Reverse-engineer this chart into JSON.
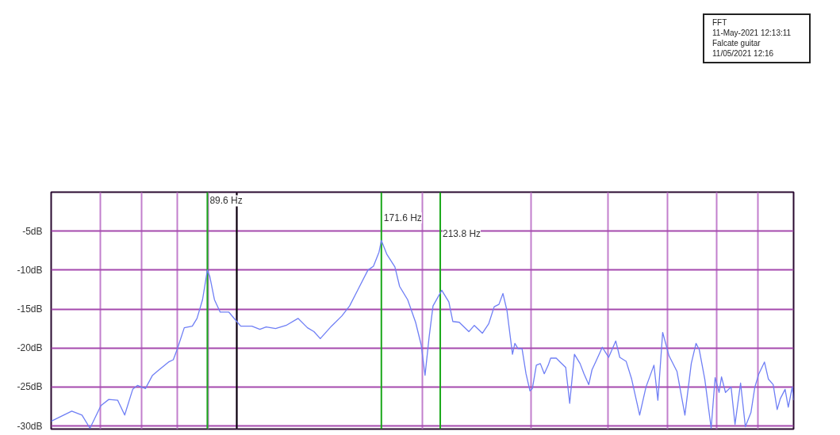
{
  "chart_data": {
    "type": "line",
    "annotations": [
      "FFT",
      "11-May-2021 12:13:11",
      "Falcate guitar",
      "11/05/2021 12:16"
    ],
    "xlim": [
      50,
      800
    ],
    "ylim": [
      -30.4,
      0
    ],
    "log": "x",
    "grid": true,
    "tick_labels": "y",
    "marker": "none",
    "line_style": "solid",
    "xticks": [
      {
        "value": 60,
        "label": null
      },
      {
        "value": 70,
        "label": null
      },
      {
        "value": 80,
        "label": null
      },
      {
        "value": 90,
        "label": null
      },
      {
        "value": 100,
        "label": null
      },
      {
        "value": 200,
        "label": null
      },
      {
        "value": 300,
        "label": null
      },
      {
        "value": 400,
        "label": null
      },
      {
        "value": 500,
        "label": null
      },
      {
        "value": 600,
        "label": null
      },
      {
        "value": 700,
        "label": null
      }
    ],
    "yticks": [
      {
        "value": -5,
        "label": "-5dB"
      },
      {
        "value": -10,
        "label": "-10dB"
      },
      {
        "value": -15,
        "label": "-15dB"
      },
      {
        "value": -20,
        "label": "-20dB"
      },
      {
        "value": -25,
        "label": "-25dB"
      },
      {
        "value": -30,
        "label": "-30dB"
      }
    ],
    "ref_lines": [
      {
        "axis": "x",
        "value": 89.6,
        "label": "89.6 Hz",
        "color": "#1aa81a"
      },
      {
        "axis": "x",
        "value": 100,
        "label": null,
        "color": "#000000"
      },
      {
        "axis": "x",
        "value": 171.6,
        "label": "171.6 Hz",
        "color": "#1aa81a"
      },
      {
        "axis": "x",
        "value": 213.8,
        "label": "213.8 Hz",
        "color": "#1aa81a"
      }
    ],
    "series": [
      {
        "color": "#6f7ff5",
        "x": [
          50.0,
          54.0,
          56.1,
          57.8,
          60.2,
          62.0,
          64.1,
          65.8,
          67.8,
          69.0,
          71.1,
          73.0,
          74.8,
          77.5,
          78.9,
          80.1,
          82.2,
          84.7,
          86.2,
          88.0,
          89.6,
          90.4,
          92.0,
          94.0,
          97.1,
          100.0,
          101.5,
          105.8,
          109.0,
          111.6,
          115.6,
          120.2,
          125.7,
          130.2,
          133.4,
          136.6,
          142.4,
          148.0,
          152.4,
          157.0,
          163.2,
          166.6,
          170.1,
          171.6,
          175.2,
          180.5,
          183.7,
          189.3,
          195.0,
          199.1,
          202.0,
          205.1,
          208.1,
          215.0,
          220.8,
          224.1,
          229.5,
          237.9,
          242.8,
          250.2,
          256.2,
          261.5,
          266.2,
          270.2,
          274.3,
          280.0,
          282.5,
          285.9,
          290.2,
          294.5,
          298.9,
          301.6,
          306.1,
          310.7,
          315.3,
          320.0,
          322.9,
          329.7,
          334.6,
          341.6,
          346.7,
          352.9,
          360.4,
          365.7,
          372.3,
          376.8,
          382.4,
          391.6,
          401.0,
          411.8,
          418.0,
          428.0,
          437.0,
          450.2,
          461.0,
          474.9,
          481.9,
          490.6,
          502.4,
          517.5,
          533.1,
          545.9,
          555.7,
          562.4,
          574.2,
          588.0,
          596.8,
          605.7,
          611.2,
          620.3,
          633.4,
          642.8,
          656.3,
          668.1,
          682.1,
          692.3,
          702.7,
          717.5,
          728.2,
          741.3,
          752.4,
          761.3,
          775.0,
          784.3,
          796.0,
          800.0
        ],
        "values": [
          -29.4,
          -28.1,
          -28.6,
          -30.3,
          -27.4,
          -26.6,
          -26.7,
          -28.6,
          -25.3,
          -24.8,
          -25.2,
          -23.5,
          -22.8,
          -21.8,
          -21.5,
          -20.1,
          -17.4,
          -17.2,
          -16.2,
          -13.8,
          -10.0,
          -10.8,
          -13.8,
          -15.4,
          -15.4,
          -16.6,
          -17.2,
          -17.2,
          -17.6,
          -17.3,
          -17.5,
          -17.1,
          -16.2,
          -17.4,
          -17.9,
          -18.8,
          -17.2,
          -15.9,
          -14.6,
          -12.6,
          -10.0,
          -9.5,
          -7.7,
          -6.2,
          -8.0,
          -9.6,
          -12.1,
          -13.8,
          -16.7,
          -19.6,
          -23.5,
          -18.6,
          -14.6,
          -12.6,
          -14.1,
          -16.6,
          -16.7,
          -17.9,
          -17.1,
          -18.1,
          -16.9,
          -14.7,
          -14.4,
          -13.0,
          -15.2,
          -20.8,
          -19.4,
          -20.1,
          -20.1,
          -23.3,
          -25.5,
          -25.2,
          -22.2,
          -22.0,
          -23.3,
          -22.2,
          -21.3,
          -21.3,
          -21.8,
          -22.5,
          -27.1,
          -20.8,
          -22.0,
          -23.3,
          -24.7,
          -22.8,
          -21.7,
          -19.9,
          -21.2,
          -19.1,
          -21.2,
          -21.7,
          -24.0,
          -28.6,
          -25.0,
          -22.2,
          -26.7,
          -18.0,
          -21.0,
          -23.0,
          -28.6,
          -22.0,
          -19.4,
          -20.2,
          -24.0,
          -30.3,
          -23.8,
          -25.7,
          -23.7,
          -25.7,
          -25.0,
          -29.8,
          -24.5,
          -30.1,
          -28.3,
          -25.0,
          -23.3,
          -21.8,
          -24.0,
          -24.7,
          -27.9,
          -26.5,
          -25.3,
          -27.6,
          -25.0,
          -26.7
        ]
      }
    ]
  }
}
